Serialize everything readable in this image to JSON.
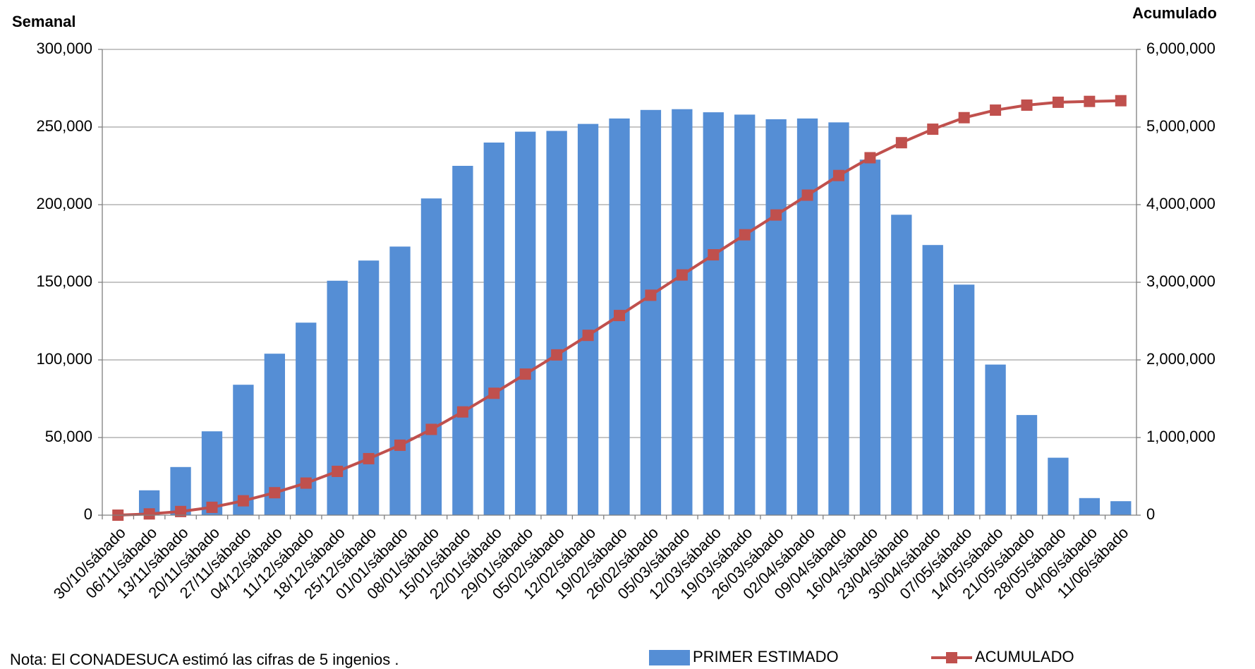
{
  "chart_data": {
    "type": "bar_line",
    "y_label": "Semanal",
    "y2_label": "Acumulado",
    "note": "Nota: El CONADESUCA estimó  las cifras de 5 ingenios .",
    "categories": [
      "30/10/sábado",
      "06/11/sábado",
      "13/11/sábado",
      "20/11/sábado",
      "27/11/sábado",
      "04/12/sábado",
      "11/12/sábado",
      "18/12/sábado",
      "25/12/sábado",
      "01/01/sábado",
      "08/01/sábado",
      "15/01/sábado",
      "22/01/sábado",
      "29/01/sábado",
      "05/02/sábado",
      "12/02/sábado",
      "19/02/sábado",
      "26/02/sábado",
      "05/03/sábado",
      "12/03/sábado",
      "19/03/sábado",
      "26/03/sábado",
      "02/04/sábado",
      "09/04/sábado",
      "16/04/sábado",
      "23/04/sábado",
      "30/04/sábado",
      "07/05/sábado",
      "14/05/sábado",
      "21/05/sábado",
      "28/05/sábado",
      "04/06/sábado",
      "11/06/sábado"
    ],
    "series": [
      {
        "name": "PRIMER ESTIMADO",
        "color": "#558ed5",
        "kind": "bar",
        "values": [
          0,
          16000,
          31000,
          54000,
          84000,
          104000,
          124000,
          151000,
          164000,
          173000,
          204000,
          225000,
          240000,
          247000,
          247500,
          252000,
          255500,
          261000,
          261500,
          259500,
          258000,
          255000,
          255500,
          253000,
          229000,
          193500,
          174000,
          148500,
          97000,
          64500,
          37000,
          11000,
          9000
        ]
      },
      {
        "name": "ACUMULADO",
        "color": "#c0504d",
        "kind": "line",
        "axis": "y2",
        "values": [
          0,
          16000,
          47000,
          101000,
          185000,
          289000,
          413000,
          564000,
          728000,
          901000,
          1105000,
          1330000,
          1570000,
          1817000,
          2064500,
          2316500,
          2572000,
          2833000,
          3094500,
          3354000,
          3612000,
          3867000,
          4122500,
          4375500,
          4604500,
          4798000,
          4972000,
          5120500,
          5217500,
          5282000,
          5319000,
          5330000,
          5339000
        ]
      }
    ],
    "ylim": [
      0,
      300000
    ],
    "yticks": [
      0,
      {
        "value": 50000,
        "label": "50,000"
      },
      {
        "value": 100000,
        "label": "100,000"
      },
      {
        "value": 150000,
        "label": "150,000"
      },
      {
        "value": 200000,
        "label": "200,000"
      },
      {
        "value": 250000,
        "label": "250,000"
      },
      {
        "value": 300000,
        "label": "300,000"
      }
    ],
    "y2lim": [
      0,
      6000000
    ],
    "y2ticks": [
      0,
      {
        "value": 1000000,
        "label": "1,000,000"
      },
      {
        "value": 2000000,
        "label": "2,000,000"
      },
      {
        "value": 3000000,
        "label": "3,000,000"
      },
      {
        "value": 4000000,
        "label": "4,000,000"
      },
      {
        "value": 5000000,
        "label": "5,000,000"
      },
      {
        "value": 6000000,
        "label": "6,000,000"
      }
    ],
    "grid": true,
    "legend": "bottom-right"
  }
}
